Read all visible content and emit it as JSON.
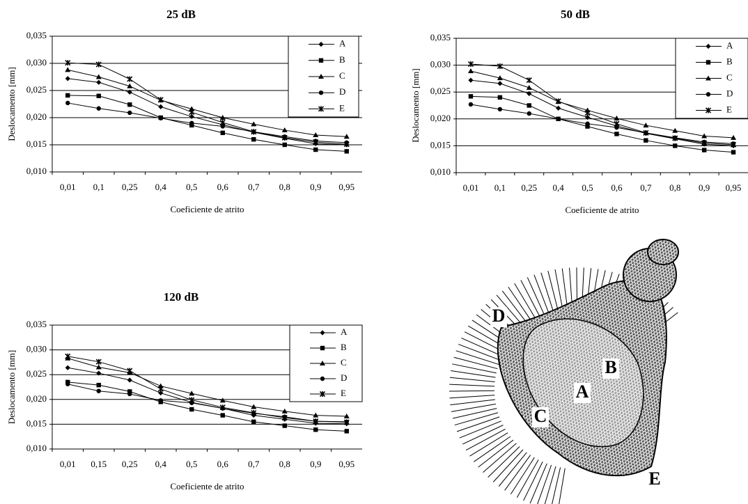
{
  "chart_data": [
    {
      "type": "line",
      "title": "25 dB",
      "x_label": "Coeficiente de atrito",
      "y_label": "Deslocamento [mm]",
      "categories": [
        "0,01",
        "0,1",
        "0,25",
        "0,4",
        "0,5",
        "0,6",
        "0,7",
        "0,8",
        "0,9",
        "0,95"
      ],
      "ylim": [
        0.01,
        0.035
      ],
      "yticks": [
        {
          "value": 0.01,
          "label": "0,010"
        },
        {
          "value": 0.015,
          "label": "0,015"
        },
        {
          "value": 0.02,
          "label": "0,020"
        },
        {
          "value": 0.025,
          "label": "0,025"
        },
        {
          "value": 0.03,
          "label": "0,030"
        },
        {
          "value": 0.035,
          "label": "0,035"
        }
      ],
      "grid": true,
      "legend": "upper right",
      "series": [
        {
          "name": "A",
          "color": "#000000",
          "marker": "diamond",
          "values": [
            0.0272,
            0.0265,
            0.0247,
            0.022,
            0.0202,
            0.0187,
            0.0173,
            0.0162,
            0.0152,
            0.015
          ]
        },
        {
          "name": "B",
          "color": "#000000",
          "marker": "square",
          "values": [
            0.0241,
            0.024,
            0.0224,
            0.02,
            0.0186,
            0.0172,
            0.016,
            0.015,
            0.0141,
            0.0138
          ]
        },
        {
          "name": "C",
          "color": "#000000",
          "marker": "triangle",
          "values": [
            0.0288,
            0.0275,
            0.0258,
            0.0232,
            0.0216,
            0.02,
            0.0188,
            0.0177,
            0.0168,
            0.0165
          ]
        },
        {
          "name": "D",
          "color": "#000000",
          "marker": "circle",
          "values": [
            0.0227,
            0.0217,
            0.0209,
            0.0199,
            0.019,
            0.0184,
            0.0174,
            0.0165,
            0.0157,
            0.0154
          ]
        },
        {
          "name": "E",
          "color": "#000000",
          "marker": "star",
          "values": [
            0.0301,
            0.0298,
            0.0271,
            0.0233,
            0.021,
            0.0191,
            0.0174,
            0.0163,
            0.0155,
            0.0151
          ]
        }
      ]
    },
    {
      "type": "line",
      "title": "50 dB",
      "x_label": "Coeficiente de atrito",
      "y_label": "Deslocamento [mm]",
      "categories": [
        "0,01",
        "0,1",
        "0,25",
        "0,4",
        "0,5",
        "0,6",
        "0,7",
        "0,8",
        "0,9",
        "0,95"
      ],
      "ylim": [
        0.01,
        0.035
      ],
      "yticks": [
        {
          "value": 0.01,
          "label": "0,010"
        },
        {
          "value": 0.015,
          "label": "0,015"
        },
        {
          "value": 0.02,
          "label": "0,020"
        },
        {
          "value": 0.025,
          "label": "0,025"
        },
        {
          "value": 0.03,
          "label": "0,030"
        },
        {
          "value": 0.035,
          "label": "0,035"
        }
      ],
      "grid": true,
      "legend": "upper right",
      "series": [
        {
          "name": "A",
          "color": "#000000",
          "marker": "diamond",
          "values": [
            0.0272,
            0.0266,
            0.0247,
            0.022,
            0.0203,
            0.0187,
            0.0173,
            0.0163,
            0.0153,
            0.015
          ]
        },
        {
          "name": "B",
          "color": "#000000",
          "marker": "square",
          "values": [
            0.0242,
            0.024,
            0.0225,
            0.02,
            0.0186,
            0.0172,
            0.016,
            0.015,
            0.0142,
            0.0138
          ]
        },
        {
          "name": "C",
          "color": "#000000",
          "marker": "triangle",
          "values": [
            0.0289,
            0.0276,
            0.0258,
            0.0232,
            0.0216,
            0.0201,
            0.0188,
            0.0178,
            0.0168,
            0.0165
          ]
        },
        {
          "name": "D",
          "color": "#000000",
          "marker": "circle",
          "values": [
            0.0227,
            0.0218,
            0.021,
            0.02,
            0.0191,
            0.0184,
            0.0174,
            0.0165,
            0.0157,
            0.0154
          ]
        },
        {
          "name": "E",
          "color": "#000000",
          "marker": "star",
          "values": [
            0.0302,
            0.0298,
            0.0272,
            0.0233,
            0.0211,
            0.0191,
            0.0174,
            0.0164,
            0.0155,
            0.0152
          ]
        }
      ]
    },
    {
      "type": "line",
      "title": "120 dB",
      "x_label": "Coeficiente de atrito",
      "y_label": "Deslocamento [mm]",
      "categories": [
        "0,01",
        "0,15",
        "0,25",
        "0,4",
        "0,5",
        "0,6",
        "0,7",
        "0,8",
        "0,9",
        "0,95"
      ],
      "ylim": [
        0.01,
        0.035
      ],
      "yticks": [
        {
          "value": 0.01,
          "label": "0,010"
        },
        {
          "value": 0.015,
          "label": "0,015"
        },
        {
          "value": 0.02,
          "label": "0,020"
        },
        {
          "value": 0.025,
          "label": "0,025"
        },
        {
          "value": 0.03,
          "label": "0,030"
        },
        {
          "value": 0.035,
          "label": "0,035"
        }
      ],
      "grid": true,
      "legend": "upper right",
      "series": [
        {
          "name": "A",
          "color": "#000000",
          "marker": "diamond",
          "values": [
            0.0264,
            0.0253,
            0.0239,
            0.0213,
            0.0194,
            0.0182,
            0.0168,
            0.016,
            0.0152,
            0.0151
          ]
        },
        {
          "name": "B",
          "color": "#000000",
          "marker": "square",
          "values": [
            0.0235,
            0.0229,
            0.0216,
            0.0195,
            0.018,
            0.0168,
            0.0155,
            0.0147,
            0.0139,
            0.0136
          ]
        },
        {
          "name": "C",
          "color": "#000000",
          "marker": "triangle",
          "values": [
            0.0283,
            0.0265,
            0.0254,
            0.0227,
            0.0212,
            0.0198,
            0.0185,
            0.0176,
            0.0168,
            0.0166
          ]
        },
        {
          "name": "D",
          "color": "#000000",
          "marker": "circle",
          "values": [
            0.0231,
            0.0217,
            0.0211,
            0.0198,
            0.0193,
            0.0182,
            0.0172,
            0.0165,
            0.0156,
            0.0155
          ]
        },
        {
          "name": "E",
          "color": "#000000",
          "marker": "star",
          "values": [
            0.0287,
            0.0276,
            0.0258,
            0.0221,
            0.0199,
            0.0184,
            0.0173,
            0.0163,
            0.0156,
            0.0154
          ]
        }
      ]
    }
  ],
  "mesh_figure": {
    "labels": [
      "D",
      "B",
      "A",
      "C",
      "E"
    ]
  }
}
